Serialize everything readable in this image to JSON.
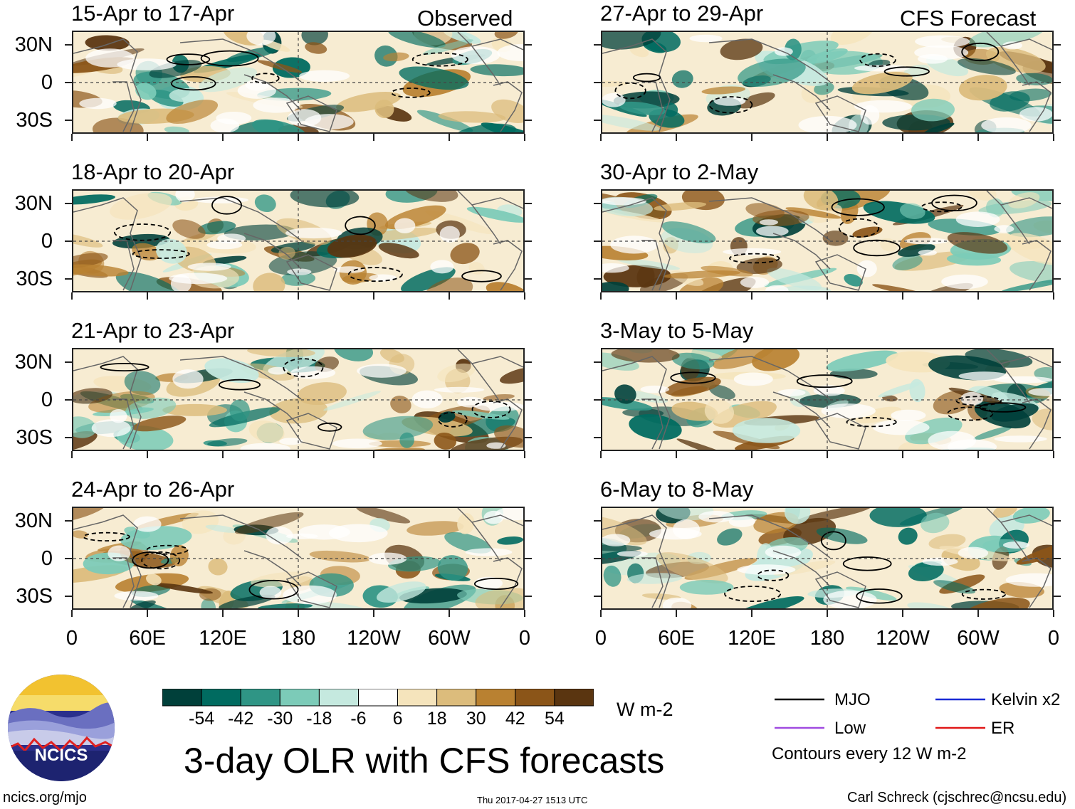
{
  "chart_data": {
    "type": "heatmap",
    "title": "3-day OLR with CFS forecasts",
    "variable": "OLR anomaly",
    "units": "W m-2",
    "contour_note": "Contours every 12 W m-2",
    "x_ticks": [
      "0",
      "60E",
      "120E",
      "180",
      "120W",
      "60W",
      "0"
    ],
    "y_ticks": [
      "30N",
      "0",
      "30S"
    ],
    "colorbar_ticks": [
      "-54",
      "-42",
      "-30",
      "-18",
      "-6",
      "6",
      "18",
      "30",
      "42",
      "54"
    ],
    "colorbar_colors": [
      "#00403a",
      "#006b60",
      "#2f9585",
      "#7ccbb8",
      "#c5e9df",
      "#ffffff",
      "#f5e4bc",
      "#dcbc7c",
      "#b98131",
      "#8b5518",
      "#5a3510"
    ],
    "columns": [
      {
        "header": "Observed",
        "panels": [
          "15-Apr to 17-Apr",
          "18-Apr to 20-Apr",
          "21-Apr to 23-Apr",
          "24-Apr to 26-Apr"
        ]
      },
      {
        "header": "CFS Forecast",
        "panels": [
          "27-Apr to 29-Apr",
          "30-Apr to 2-May",
          "3-May to 5-May",
          "6-May to 8-May"
        ]
      }
    ],
    "contour_legend": [
      {
        "label": "MJO",
        "color": "#000000"
      },
      {
        "label": "Kelvin x2",
        "color": "#1a2bd6"
      },
      {
        "label": "Low",
        "color": "#a04be0"
      },
      {
        "label": "ER",
        "color": "#e01818"
      }
    ]
  },
  "footer": {
    "url": "ncics.org/mjo",
    "timestamp": "Thu 2017-04-27 1513 UTC",
    "credit": "Carl Schreck (cjschrec@ncsu.edu)",
    "logo_text": "NCICS"
  }
}
